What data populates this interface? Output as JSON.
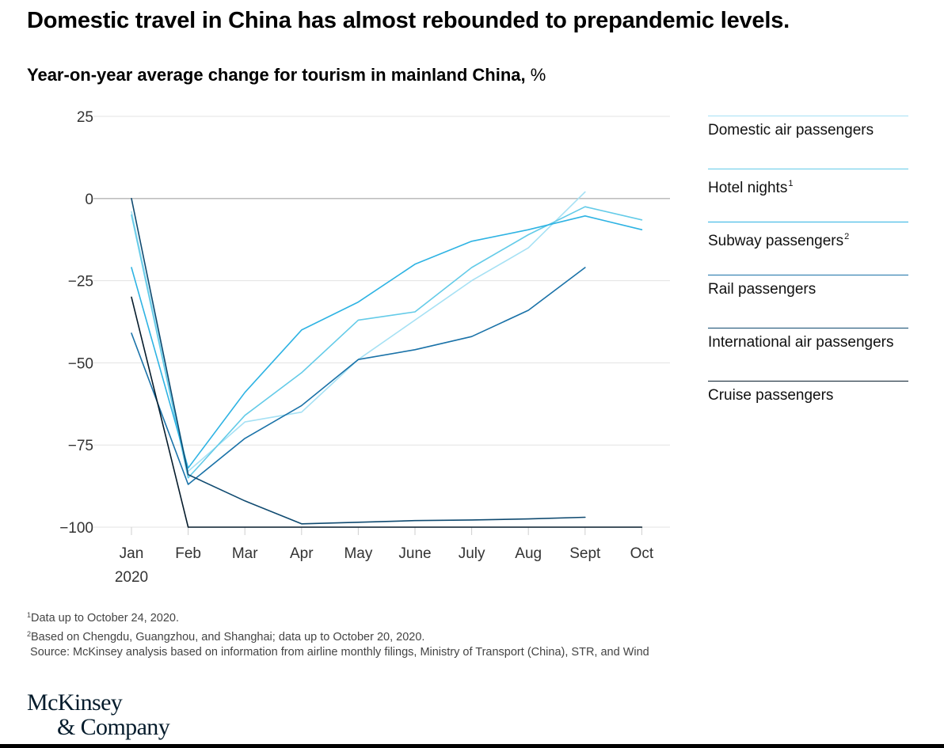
{
  "title": "Domestic travel in China has almost rebounded to prepandemic levels.",
  "subtitle": {
    "main": "Year-on-year average change for tourism in mainland China,",
    "unit": " %"
  },
  "chart_data": {
    "type": "line",
    "title": "Year-on-year average change for tourism in mainland China, %",
    "xlabel": "",
    "ylabel": "",
    "categories": [
      "Jan",
      "Feb",
      "Mar",
      "Apr",
      "May",
      "June",
      "July",
      "Aug",
      "Sept",
      "Oct"
    ],
    "x_sublabel": "2020",
    "ylim": [
      -100,
      25
    ],
    "yticks": [
      25,
      0,
      -25,
      -50,
      -75,
      -100
    ],
    "ytick_labels": [
      "25",
      "0",
      "−25",
      "−50",
      "−75",
      "−100"
    ],
    "grid": true,
    "legend_position": "right",
    "series": [
      {
        "name": "Domestic air passengers",
        "sup": "",
        "color": "#a6e1f4",
        "values": [
          -4,
          -83,
          -68,
          -65,
          -49,
          -37,
          -25,
          -15,
          2,
          null
        ]
      },
      {
        "name": "Hotel nights",
        "sup": "1",
        "color": "#64cbe8",
        "values": [
          -5,
          -85,
          -66,
          -53,
          -37,
          -34.5,
          -21,
          -11,
          -2.5,
          -6.5
        ]
      },
      {
        "name": "Subway passengers",
        "sup": "2",
        "color": "#2eb3e3",
        "values": [
          -21,
          -82,
          -59,
          -40,
          -31.5,
          -20,
          -13,
          -9.5,
          -5.3,
          -9.5
        ]
      },
      {
        "name": "Rail passengers",
        "sup": "",
        "color": "#1a72a8",
        "values": [
          -41,
          -87,
          -73,
          -63,
          -49,
          -46,
          -42,
          -34,
          -21,
          null
        ]
      },
      {
        "name": "International air passengers",
        "sup": "",
        "color": "#0f4a70",
        "values": [
          0,
          -84,
          -92,
          -99,
          -98.5,
          -98,
          -97.8,
          -97.5,
          -97,
          null
        ]
      },
      {
        "name": "Cruise passengers",
        "sup": "",
        "color": "#061c2c",
        "values": [
          -30,
          -100,
          -100,
          -100,
          -100,
          -100,
          -100,
          -100,
          -100,
          -100
        ]
      }
    ]
  },
  "notes": {
    "note1_sup": "1",
    "note1": "Data up to October 24, 2020.",
    "note2_sup": "2",
    "note2": "Based on Chengdu, Guangzhou, and Shanghai; data up to October 20, 2020.",
    "source": "Source: McKinsey analysis based on information from airline monthly filings, Ministry of Transport (China), STR, and Wind"
  },
  "logo": {
    "line1": "McKinsey",
    "line2": "& Company"
  }
}
